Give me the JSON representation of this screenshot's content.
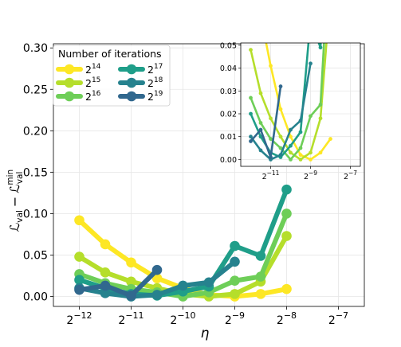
{
  "chart_data": [
    {
      "type": "line",
      "role": "main",
      "title": "",
      "xlabel": "η",
      "ylabel_main": "ℒ",
      "ylabel_sub1": "val",
      "ylabel_minus": "−",
      "ylabel_main2": "ℒ",
      "ylabel_sub2": "val",
      "ylabel_sup2": "min",
      "x_scale": "log2",
      "xlim": [
        -12.5,
        -6.5
      ],
      "ylim": [
        -0.012,
        0.305
      ],
      "grid": true,
      "x_ticks": [
        -12,
        -11,
        -10,
        -9,
        -8,
        -7
      ],
      "x_tick_base": "2",
      "x_tick_exponents": [
        "−12",
        "−11",
        "−10",
        "−9",
        "−8",
        "−7"
      ],
      "y_ticks": [
        0.0,
        0.05,
        0.1,
        0.15,
        0.2,
        0.25,
        0.3
      ],
      "y_tick_labels": [
        "0.00",
        "0.05",
        "0.10",
        "0.15",
        "0.20",
        "0.25",
        "0.30"
      ],
      "legend": {
        "title": "Number of iterations",
        "placement": "top-left",
        "base": "2",
        "entries": [
          {
            "exp": "14",
            "color": "#fde725"
          },
          {
            "exp": "15",
            "color": "#b5de2b"
          },
          {
            "exp": "16",
            "color": "#6ece58"
          },
          {
            "exp": "17",
            "color": "#1f9e89"
          },
          {
            "exp": "18",
            "color": "#26828e"
          },
          {
            "exp": "19",
            "color": "#31688e"
          }
        ]
      },
      "series": [
        {
          "name": "2^14",
          "color": "#fde725",
          "points": [
            [
              -12,
              0.092
            ],
            [
              -11.5,
              0.063
            ],
            [
              -11,
              0.041
            ],
            [
              -10.5,
              0.022
            ],
            [
              -10,
              0.01
            ],
            [
              -9.5,
              0.002
            ],
            [
              -9,
              0.0
            ],
            [
              -8.5,
              0.003
            ],
            [
              -8,
              0.009
            ]
          ]
        },
        {
          "name": "2^15",
          "color": "#b5de2b",
          "points": [
            [
              -12,
              0.048
            ],
            [
              -11.5,
              0.029
            ],
            [
              -11,
              0.018
            ],
            [
              -10.5,
              0.01
            ],
            [
              -10,
              0.003
            ],
            [
              -9.5,
              0.0
            ],
            [
              -9,
              0.003
            ],
            [
              -8.5,
              0.018
            ],
            [
              -8,
              0.073
            ]
          ]
        },
        {
          "name": "2^16",
          "color": "#6ece58",
          "points": [
            [
              -12,
              0.027
            ],
            [
              -11.5,
              0.016
            ],
            [
              -11,
              0.009
            ],
            [
              -10.5,
              0.005
            ],
            [
              -10,
              0.0
            ],
            [
              -9.5,
              0.005
            ],
            [
              -9,
              0.019
            ],
            [
              -8.5,
              0.024
            ],
            [
              -8,
              0.1
            ]
          ]
        },
        {
          "name": "2^17",
          "color": "#1f9e89",
          "points": [
            [
              -12,
              0.02
            ],
            [
              -11.5,
              0.01
            ],
            [
              -11,
              0.003
            ],
            [
              -10.5,
              0.001
            ],
            [
              -10,
              0.006
            ],
            [
              -9.5,
              0.012
            ],
            [
              -9,
              0.061
            ],
            [
              -8.5,
              0.049
            ],
            [
              -8,
              0.129
            ]
          ]
        },
        {
          "name": "2^18",
          "color": "#26828e",
          "points": [
            [
              -12,
              0.01
            ],
            [
              -11.5,
              0.004
            ],
            [
              -11,
              0.0
            ],
            [
              -10.5,
              0.002
            ],
            [
              -10,
              0.013
            ],
            [
              -9.5,
              0.017
            ],
            [
              -9,
              0.042
            ]
          ]
        },
        {
          "name": "2^19",
          "color": "#31688e",
          "points": [
            [
              -12,
              0.008
            ],
            [
              -11.5,
              0.013
            ],
            [
              -11,
              0.001
            ],
            [
              -10.5,
              0.032
            ]
          ]
        }
      ]
    },
    {
      "type": "line",
      "role": "inset",
      "title": "",
      "x_scale": "log2",
      "xlim": [
        -12.5,
        -6.5
      ],
      "ylim": [
        -0.003,
        0.051
      ],
      "grid": true,
      "x_ticks": [
        -11,
        -9,
        -7
      ],
      "x_tick_base": "2",
      "x_tick_exponents": [
        "−11",
        "−9",
        "−7"
      ],
      "y_ticks": [
        0.0,
        0.01,
        0.02,
        0.03,
        0.04,
        0.05
      ],
      "y_tick_labels": [
        "0.00",
        "0.01",
        "0.02",
        "0.03",
        "0.04",
        "0.05"
      ],
      "uses_series_of": "main"
    }
  ]
}
